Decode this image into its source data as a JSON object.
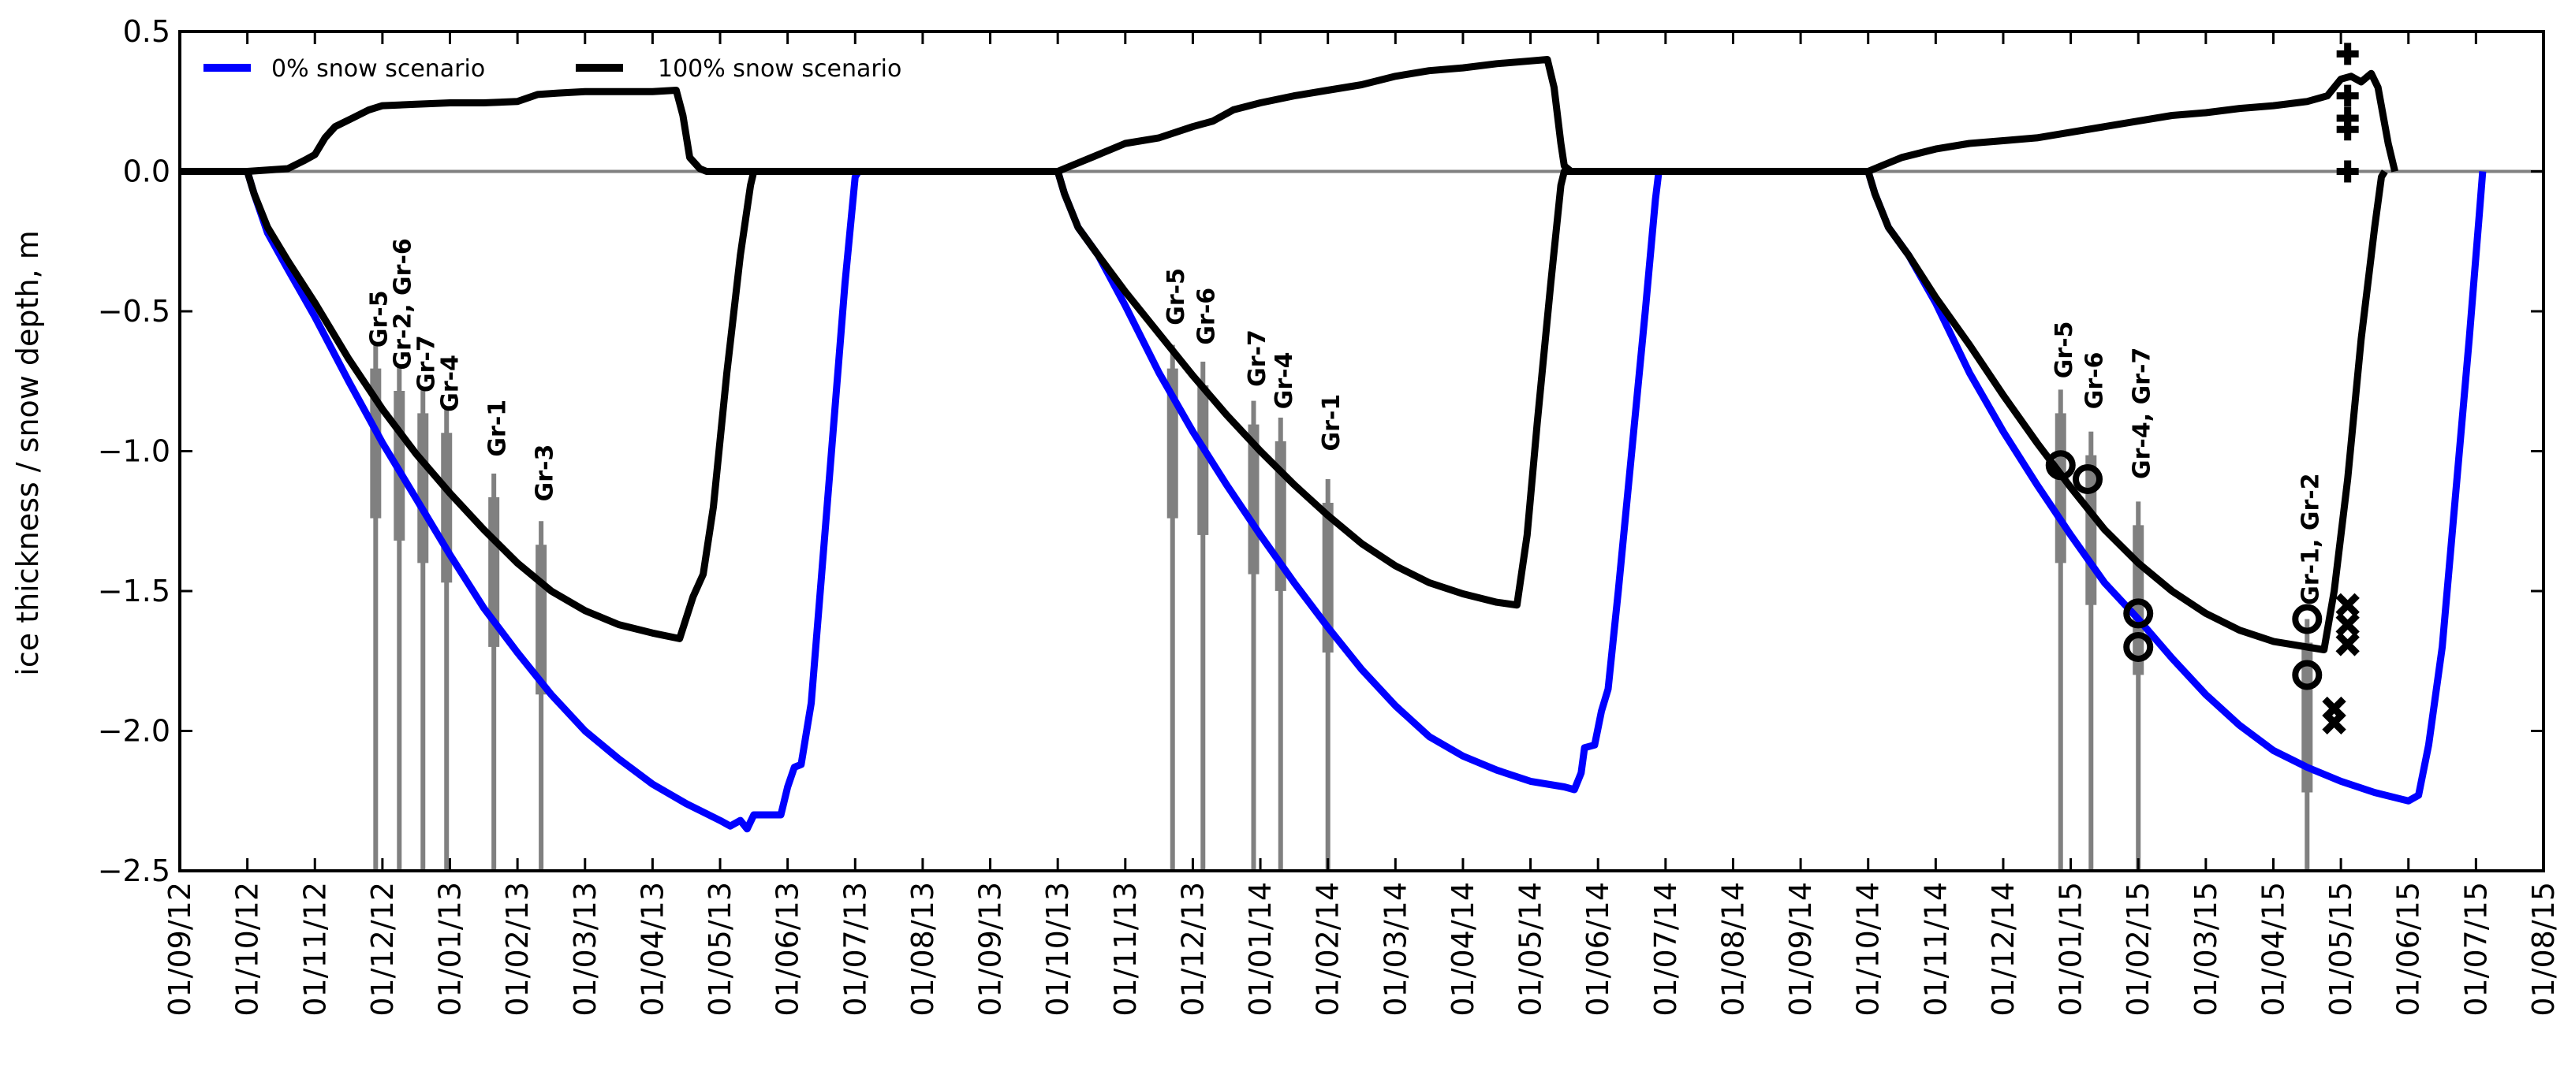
{
  "chart_data": {
    "type": "line",
    "ylabel": "ice thickness / snow depth, m",
    "xlabel": "",
    "ylim": [
      -2.5,
      0.5
    ],
    "yticks": [
      "0.5",
      "0.0",
      "−0.5",
      "−1.0",
      "−1.5",
      "−2.0",
      "−2.5"
    ],
    "ytick_values": [
      0.5,
      0.0,
      -0.5,
      -1.0,
      -1.5,
      -2.0,
      -2.5
    ],
    "xticks": [
      "01/09/12",
      "01/10/12",
      "01/11/12",
      "01/12/12",
      "01/01/13",
      "01/02/13",
      "01/03/13",
      "01/04/13",
      "01/05/13",
      "01/06/13",
      "01/07/13",
      "01/08/13",
      "01/09/13",
      "01/10/13",
      "01/11/13",
      "01/12/13",
      "01/01/14",
      "01/02/14",
      "01/03/14",
      "01/04/14",
      "01/05/14",
      "01/06/14",
      "01/07/14",
      "01/08/14",
      "01/09/14",
      "01/10/14",
      "01/11/14",
      "01/12/14",
      "01/01/15",
      "01/02/15",
      "01/03/15",
      "01/04/15",
      "01/05/15",
      "01/06/15",
      "01/07/15",
      "01/08/15"
    ],
    "x_units": "months (first of month); xlim = [01/09/12, 01/08/15]",
    "legend_position": "top-left",
    "grid": false,
    "series": [
      {
        "name": "0% snow scenario",
        "color": "#0000ff",
        "points": [
          [
            0,
            0
          ],
          [
            1,
            0
          ],
          [
            1.1,
            -0.08
          ],
          [
            1.3,
            -0.22
          ],
          [
            1.6,
            -0.35
          ],
          [
            2,
            -0.52
          ],
          [
            2.5,
            -0.75
          ],
          [
            3,
            -0.97
          ],
          [
            3.5,
            -1.17
          ],
          [
            4,
            -1.37
          ],
          [
            4.5,
            -1.56
          ],
          [
            5,
            -1.72
          ],
          [
            5.5,
            -1.87
          ],
          [
            6,
            -2.0
          ],
          [
            6.5,
            -2.1
          ],
          [
            7,
            -2.19
          ],
          [
            7.5,
            -2.26
          ],
          [
            8,
            -2.32
          ],
          [
            8.15,
            -2.34
          ],
          [
            8.3,
            -2.32
          ],
          [
            8.4,
            -2.35
          ],
          [
            8.5,
            -2.3
          ],
          [
            8.9,
            -2.3
          ],
          [
            9.0,
            -2.2
          ],
          [
            9.1,
            -2.13
          ],
          [
            9.2,
            -2.12
          ],
          [
            9.35,
            -1.9
          ],
          [
            9.5,
            -1.45
          ],
          [
            9.7,
            -0.85
          ],
          [
            9.85,
            -0.4
          ],
          [
            10,
            -0.02
          ],
          [
            10.05,
            0
          ],
          [
            12,
            0
          ],
          [
            13,
            0
          ],
          [
            13.1,
            -0.08
          ],
          [
            13.3,
            -0.2
          ],
          [
            13.6,
            -0.3
          ],
          [
            14,
            -0.48
          ],
          [
            14.5,
            -0.72
          ],
          [
            15,
            -0.93
          ],
          [
            15.5,
            -1.12
          ],
          [
            16,
            -1.3
          ],
          [
            16.5,
            -1.47
          ],
          [
            17,
            -1.63
          ],
          [
            17.5,
            -1.78
          ],
          [
            18,
            -1.91
          ],
          [
            18.5,
            -2.02
          ],
          [
            19,
            -2.09
          ],
          [
            19.5,
            -2.14
          ],
          [
            20,
            -2.18
          ],
          [
            20.5,
            -2.2
          ],
          [
            20.65,
            -2.21
          ],
          [
            20.75,
            -2.15
          ],
          [
            20.8,
            -2.06
          ],
          [
            20.95,
            -2.05
          ],
          [
            21.05,
            -1.93
          ],
          [
            21.15,
            -1.85
          ],
          [
            21.3,
            -1.5
          ],
          [
            21.5,
            -1.0
          ],
          [
            21.7,
            -0.5
          ],
          [
            21.85,
            -0.1
          ],
          [
            21.9,
            0
          ],
          [
            24,
            0
          ],
          [
            25,
            0
          ],
          [
            25.1,
            -0.08
          ],
          [
            25.3,
            -0.2
          ],
          [
            25.6,
            -0.3
          ],
          [
            26,
            -0.47
          ],
          [
            26.5,
            -0.72
          ],
          [
            27,
            -0.93
          ],
          [
            27.5,
            -1.12
          ],
          [
            28,
            -1.3
          ],
          [
            28.5,
            -1.47
          ],
          [
            29,
            -1.6
          ],
          [
            29.5,
            -1.74
          ],
          [
            30,
            -1.87
          ],
          [
            30.5,
            -1.98
          ],
          [
            31,
            -2.07
          ],
          [
            31.5,
            -2.13
          ],
          [
            32,
            -2.18
          ],
          [
            32.5,
            -2.22
          ],
          [
            33,
            -2.25
          ],
          [
            33.15,
            -2.23
          ],
          [
            33.3,
            -2.05
          ],
          [
            33.5,
            -1.7
          ],
          [
            33.7,
            -1.15
          ],
          [
            33.9,
            -0.6
          ],
          [
            34.05,
            -0.15
          ],
          [
            34.1,
            0
          ]
        ]
      },
      {
        "name": "100% snow scenario",
        "color": "#000000",
        "points": [
          [
            0,
            0
          ],
          [
            1,
            0
          ],
          [
            1.1,
            -0.08
          ],
          [
            1.3,
            -0.2
          ],
          [
            1.6,
            -0.32
          ],
          [
            2,
            -0.47
          ],
          [
            2.5,
            -0.67
          ],
          [
            3,
            -0.85
          ],
          [
            3.5,
            -1.01
          ],
          [
            4,
            -1.15
          ],
          [
            4.5,
            -1.28
          ],
          [
            5,
            -1.4
          ],
          [
            5.5,
            -1.5
          ],
          [
            6,
            -1.57
          ],
          [
            6.5,
            -1.62
          ],
          [
            7,
            -1.65
          ],
          [
            7.4,
            -1.67
          ],
          [
            7.6,
            -1.52
          ],
          [
            7.75,
            -1.44
          ],
          [
            7.9,
            -1.2
          ],
          [
            8.1,
            -0.72
          ],
          [
            8.3,
            -0.3
          ],
          [
            8.45,
            -0.05
          ],
          [
            8.5,
            0
          ],
          [
            12,
            0
          ],
          [
            13,
            0
          ],
          [
            13.1,
            -0.08
          ],
          [
            13.3,
            -0.2
          ],
          [
            13.6,
            -0.3
          ],
          [
            14,
            -0.43
          ],
          [
            14.5,
            -0.58
          ],
          [
            15,
            -0.73
          ],
          [
            15.5,
            -0.87
          ],
          [
            16,
            -1.0
          ],
          [
            16.5,
            -1.12
          ],
          [
            17,
            -1.23
          ],
          [
            17.5,
            -1.33
          ],
          [
            18,
            -1.41
          ],
          [
            18.5,
            -1.47
          ],
          [
            19,
            -1.51
          ],
          [
            19.5,
            -1.54
          ],
          [
            19.8,
            -1.55
          ],
          [
            19.95,
            -1.3
          ],
          [
            20.1,
            -0.9
          ],
          [
            20.3,
            -0.4
          ],
          [
            20.45,
            -0.05
          ],
          [
            20.5,
            0
          ],
          [
            24,
            0
          ],
          [
            25,
            0
          ],
          [
            25.1,
            -0.08
          ],
          [
            25.3,
            -0.2
          ],
          [
            25.6,
            -0.3
          ],
          [
            26,
            -0.45
          ],
          [
            26.5,
            -0.62
          ],
          [
            27,
            -0.8
          ],
          [
            27.5,
            -0.97
          ],
          [
            28,
            -1.13
          ],
          [
            28.5,
            -1.28
          ],
          [
            29,
            -1.4
          ],
          [
            29.5,
            -1.5
          ],
          [
            30,
            -1.58
          ],
          [
            30.5,
            -1.64
          ],
          [
            31,
            -1.68
          ],
          [
            31.5,
            -1.7
          ],
          [
            31.75,
            -1.71
          ],
          [
            31.9,
            -1.5
          ],
          [
            32.1,
            -1.1
          ],
          [
            32.3,
            -0.6
          ],
          [
            32.5,
            -0.2
          ],
          [
            32.6,
            -0.02
          ],
          [
            32.65,
            0
          ]
        ]
      },
      {
        "name": "",
        "color": "#000000",
        "points": [
          [
            1,
            0
          ],
          [
            1.6,
            0.01
          ],
          [
            1.85,
            0.04
          ],
          [
            2.0,
            0.06
          ],
          [
            2.15,
            0.12
          ],
          [
            2.3,
            0.16
          ],
          [
            2.55,
            0.19
          ],
          [
            2.8,
            0.22
          ],
          [
            3.0,
            0.235
          ],
          [
            3.5,
            0.24
          ],
          [
            4,
            0.245
          ],
          [
            4.5,
            0.245
          ],
          [
            5,
            0.25
          ],
          [
            5.3,
            0.275
          ],
          [
            5.6,
            0.28
          ],
          [
            6,
            0.285
          ],
          [
            7,
            0.285
          ],
          [
            7.35,
            0.29
          ],
          [
            7.45,
            0.2
          ],
          [
            7.55,
            0.05
          ],
          [
            7.7,
            0.01
          ],
          [
            7.8,
            0
          ],
          [
            13,
            0
          ],
          [
            13.2,
            0.02
          ],
          [
            13.5,
            0.05
          ],
          [
            13.8,
            0.08
          ],
          [
            14,
            0.1
          ],
          [
            14.5,
            0.12
          ],
          [
            15,
            0.16
          ],
          [
            15.3,
            0.18
          ],
          [
            15.6,
            0.22
          ],
          [
            16,
            0.245
          ],
          [
            16.5,
            0.27
          ],
          [
            17,
            0.29
          ],
          [
            17.5,
            0.31
          ],
          [
            18,
            0.34
          ],
          [
            18.5,
            0.36
          ],
          [
            19,
            0.37
          ],
          [
            19.5,
            0.385
          ],
          [
            20,
            0.395
          ],
          [
            20.25,
            0.4
          ],
          [
            20.35,
            0.3
          ],
          [
            20.45,
            0.1
          ],
          [
            20.5,
            0.02
          ],
          [
            20.6,
            0
          ],
          [
            25,
            0
          ],
          [
            25.2,
            0.02
          ],
          [
            25.5,
            0.05
          ],
          [
            26,
            0.08
          ],
          [
            26.5,
            0.1
          ],
          [
            27,
            0.11
          ],
          [
            27.5,
            0.12
          ],
          [
            28,
            0.14
          ],
          [
            28.5,
            0.16
          ],
          [
            29,
            0.18
          ],
          [
            29.5,
            0.2
          ],
          [
            30,
            0.21
          ],
          [
            30.5,
            0.225
          ],
          [
            31,
            0.235
          ],
          [
            31.5,
            0.25
          ],
          [
            31.8,
            0.27
          ],
          [
            32,
            0.33
          ],
          [
            32.15,
            0.34
          ],
          [
            32.3,
            0.32
          ],
          [
            32.45,
            0.35
          ],
          [
            32.55,
            0.3
          ],
          [
            32.7,
            0.1
          ],
          [
            32.8,
            0
          ]
        ]
      }
    ],
    "measurement_bars": [
      {
        "x": 2.9,
        "top": -0.62,
        "bottom": -2.5
      },
      {
        "x": 3.25,
        "top": -0.7,
        "bottom": -2.5
      },
      {
        "x": 3.6,
        "top": -0.78,
        "bottom": -2.5
      },
      {
        "x": 3.95,
        "top": -0.85,
        "bottom": -2.5
      },
      {
        "x": 4.65,
        "top": -1.08,
        "bottom": -2.5
      },
      {
        "x": 5.35,
        "top": -1.25,
        "bottom": -2.5
      },
      {
        "x": 14.7,
        "top": -0.62,
        "bottom": -2.5
      },
      {
        "x": 15.15,
        "top": -0.68,
        "bottom": -2.5
      },
      {
        "x": 15.9,
        "top": -0.82,
        "bottom": -2.5
      },
      {
        "x": 16.3,
        "top": -0.88,
        "bottom": -2.5
      },
      {
        "x": 17.0,
        "top": -1.1,
        "bottom": -2.5
      },
      {
        "x": 27.85,
        "top": -0.78,
        "bottom": -2.5
      },
      {
        "x": 28.3,
        "top": -0.93,
        "bottom": -2.5
      },
      {
        "x": 29.0,
        "top": -1.18,
        "bottom": -2.5
      },
      {
        "x": 31.5,
        "top": -1.6,
        "bottom": -2.5
      }
    ],
    "annotations": [
      {
        "text": "Gr-5",
        "x": 2.95,
        "y": -0.63
      },
      {
        "text": "Gr-2, Gr-6",
        "x": 3.3,
        "y": -0.71
      },
      {
        "text": "Gr-7",
        "x": 3.65,
        "y": -0.79
      },
      {
        "text": "Gr-4",
        "x": 4.0,
        "y": -0.86
      },
      {
        "text": "Gr-1",
        "x": 4.7,
        "y": -1.02
      },
      {
        "text": "Gr-3",
        "x": 5.4,
        "y": -1.18
      },
      {
        "text": "Gr-5",
        "x": 14.75,
        "y": -0.55
      },
      {
        "text": "Gr-6",
        "x": 15.2,
        "y": -0.62
      },
      {
        "text": "Gr-7",
        "x": 15.95,
        "y": -0.77
      },
      {
        "text": "Gr-4",
        "x": 16.35,
        "y": -0.85
      },
      {
        "text": "Gr-1",
        "x": 17.05,
        "y": -1.0
      },
      {
        "text": "Gr-5",
        "x": 27.9,
        "y": -0.74
      },
      {
        "text": "Gr-6",
        "x": 28.35,
        "y": -0.85
      },
      {
        "text": "Gr-4, Gr-7",
        "x": 29.05,
        "y": -1.1
      },
      {
        "text": "Gr-1, Gr-2",
        "x": 31.55,
        "y": -1.55
      }
    ],
    "circle_markers": [
      {
        "x": 27.85,
        "y": -1.05
      },
      {
        "x": 28.25,
        "y": -1.1
      },
      {
        "x": 29.0,
        "y": -1.58
      },
      {
        "x": 29.0,
        "y": -1.7
      },
      {
        "x": 31.5,
        "y": -1.6
      },
      {
        "x": 31.5,
        "y": -1.8
      }
    ],
    "x_markers": [
      {
        "x": 32.1,
        "y": -1.55
      },
      {
        "x": 32.1,
        "y": -1.62
      },
      {
        "x": 32.1,
        "y": -1.69
      },
      {
        "x": 31.9,
        "y": -1.92
      },
      {
        "x": 31.9,
        "y": -1.97
      }
    ],
    "plus_markers": [
      {
        "x": 32.1,
        "y": 0.42
      },
      {
        "x": 32.1,
        "y": 0.27
      },
      {
        "x": 32.1,
        "y": 0.19
      },
      {
        "x": 32.1,
        "y": 0.15
      },
      {
        "x": 32.1,
        "y": 0.0
      }
    ]
  }
}
